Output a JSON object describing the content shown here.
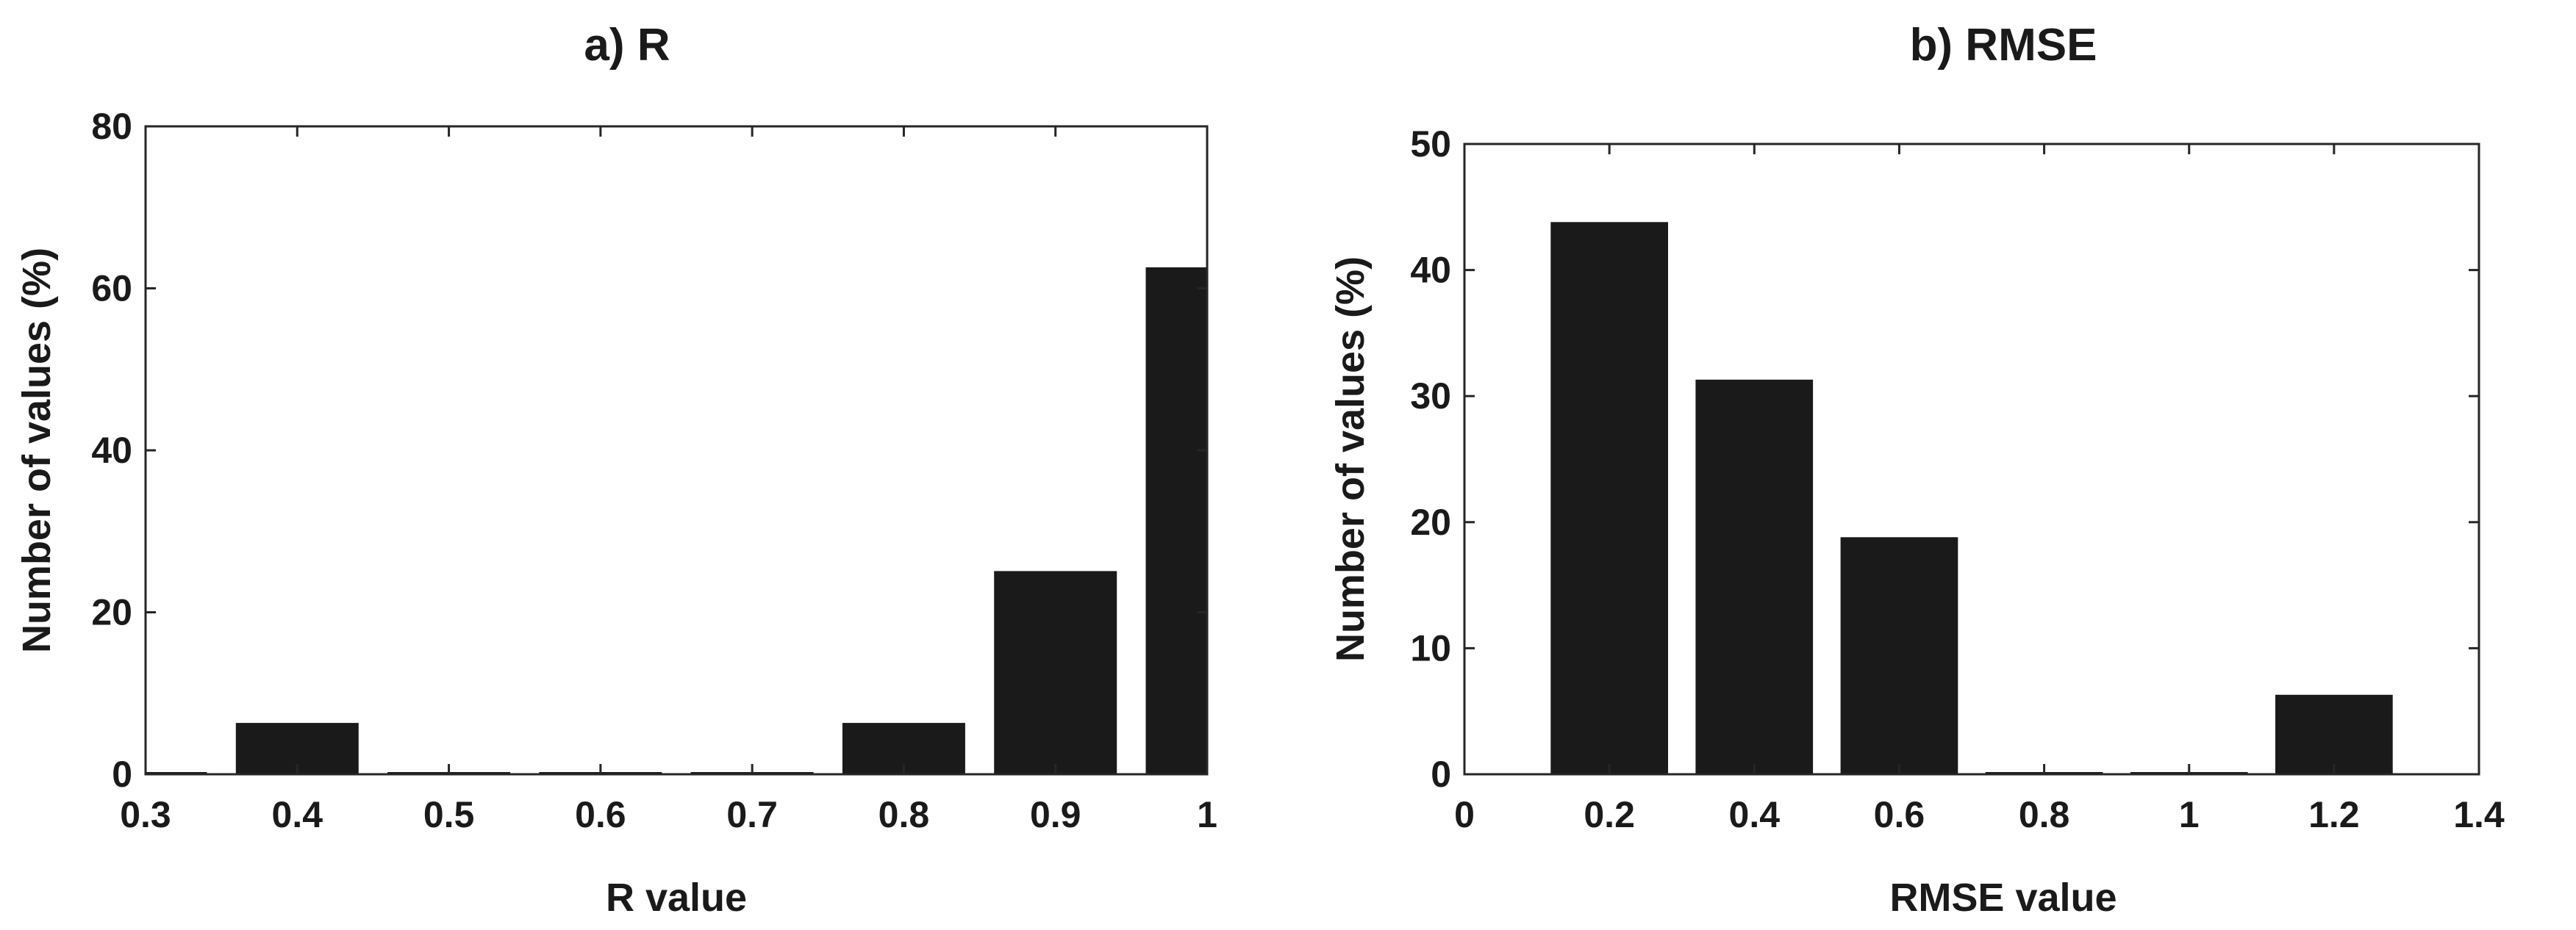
{
  "chart_data": [
    {
      "type": "bar",
      "title": "a) R",
      "xlabel": "R value",
      "ylabel": "Number of values (%)",
      "xlim": [
        0.3,
        1.0
      ],
      "ylim": [
        0,
        80
      ],
      "xticks": [
        "0.3",
        "0.4",
        "0.5",
        "0.6",
        "0.7",
        "0.8",
        "0.9",
        "1"
      ],
      "yticks": [
        "0",
        "20",
        "40",
        "60",
        "80"
      ],
      "bar_width": 0.08,
      "x": [
        0.3,
        0.4,
        0.5,
        0.6,
        0.7,
        0.8,
        0.9,
        1.0
      ],
      "values": [
        0,
        6.25,
        0,
        0,
        0,
        6.25,
        25.0,
        62.5
      ],
      "grid": false,
      "bar_color": "#1a1a1a"
    },
    {
      "type": "bar",
      "title": "b) RMSE",
      "xlabel": "RMSE value",
      "ylabel": "Number of values (%)",
      "xlim": [
        0,
        1.4
      ],
      "ylim": [
        0,
        50
      ],
      "xticks": [
        "0",
        "0.2",
        "0.4",
        "0.6",
        "0.8",
        "1",
        "1.2",
        "1.4"
      ],
      "yticks": [
        "0",
        "10",
        "20",
        "30",
        "40",
        "50"
      ],
      "bar_width": 0.16,
      "x": [
        0.2,
        0.4,
        0.6,
        0.8,
        1.0,
        1.2
      ],
      "values": [
        43.75,
        31.25,
        18.75,
        0,
        0,
        6.25
      ],
      "grid": false,
      "bar_color": "#1a1a1a"
    }
  ]
}
